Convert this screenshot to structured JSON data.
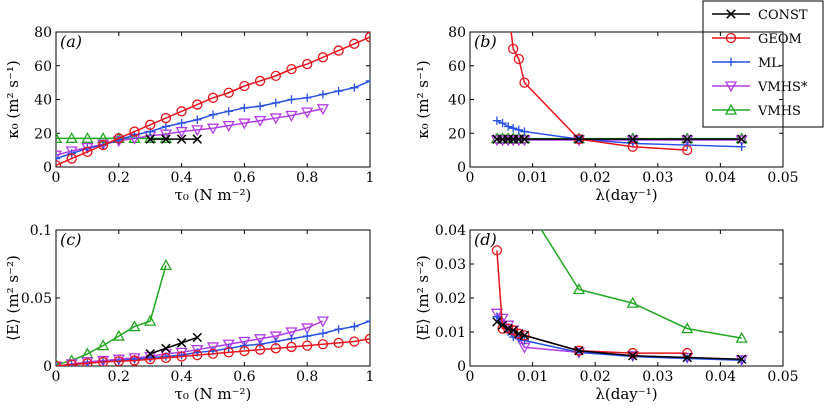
{
  "series_styles": [
    {
      "key": "const",
      "color": "#000000",
      "marker": "x"
    },
    {
      "key": "geom",
      "color": "#e8141c",
      "marker": "circle"
    },
    {
      "key": "ml",
      "color": "#2850e6",
      "marker": "plus"
    },
    {
      "key": "vmhs_star",
      "color": "#b43ce6",
      "marker": "tri-down"
    },
    {
      "key": "vmhs",
      "color": "#1fa81f",
      "marker": "tri-up"
    }
  ],
  "legend": {
    "const": "CONST",
    "geom": "GEOM",
    "ml": "ML",
    "vmhs_star": "VMHS*",
    "vmhs": "VMHS"
  },
  "chart_data": [
    {
      "id": "a",
      "type": "line",
      "panel_label": "(a)",
      "xlabel": "τ₀ (N m⁻²)",
      "ylabel": "κ₀ (m² s⁻¹)",
      "xlim": [
        0,
        1
      ],
      "ylim": [
        0,
        80
      ],
      "xticks": [
        0,
        0.2,
        0.4,
        0.6,
        0.8,
        1
      ],
      "xtick_labels": [
        "0",
        "0.2",
        "0.4",
        "0.6",
        "0.8",
        "1"
      ],
      "yticks": [
        0,
        20,
        40,
        60,
        80
      ],
      "ytick_labels": [
        "0",
        "20",
        "40",
        "60",
        "80"
      ],
      "series": [
        {
          "key": "const",
          "name": "CONST",
          "x": [
            0.3,
            0.35,
            0.4,
            0.45
          ],
          "y": [
            16.5,
            16.5,
            16.5,
            16.5
          ]
        },
        {
          "key": "geom",
          "name": "GEOM",
          "x": [
            0,
            0.05,
            0.1,
            0.15,
            0.2,
            0.25,
            0.3,
            0.35,
            0.4,
            0.45,
            0.5,
            0.55,
            0.6,
            0.65,
            0.7,
            0.75,
            0.8,
            0.85,
            0.9,
            0.95,
            1.0
          ],
          "y": [
            1,
            5,
            9,
            13,
            17,
            21,
            25,
            29,
            33,
            37,
            41,
            44,
            48,
            51,
            54,
            58,
            61,
            65,
            69,
            73,
            77
          ]
        },
        {
          "key": "ml",
          "name": "ML",
          "x": [
            0,
            0.05,
            0.1,
            0.15,
            0.2,
            0.25,
            0.3,
            0.35,
            0.4,
            0.45,
            0.5,
            0.55,
            0.6,
            0.65,
            0.7,
            0.75,
            0.8,
            0.85,
            0.9,
            0.95,
            1.0
          ],
          "y": [
            5,
            8,
            11,
            13,
            16,
            19,
            21,
            24,
            26,
            28,
            31,
            33,
            35,
            36,
            38,
            40,
            41,
            43,
            45,
            47,
            51
          ]
        },
        {
          "key": "vmhs_star",
          "name": "VMHS*",
          "x": [
            0,
            0.05,
            0.1,
            0.15,
            0.2,
            0.25,
            0.3,
            0.35,
            0.4,
            0.45,
            0.5,
            0.55,
            0.6,
            0.65,
            0.7,
            0.75,
            0.8,
            0.85
          ],
          "y": [
            7,
            9.5,
            11.5,
            13.5,
            15.5,
            17,
            18.5,
            19.5,
            21,
            22,
            23,
            24.5,
            26,
            27.5,
            29,
            30.5,
            32.5,
            34.5
          ]
        },
        {
          "key": "vmhs",
          "name": "VMHS",
          "x": [
            0,
            0.05,
            0.1,
            0.15,
            0.2,
            0.25,
            0.3,
            0.35
          ],
          "y": [
            17,
            17,
            17,
            17,
            17,
            17,
            17,
            17
          ]
        }
      ]
    },
    {
      "id": "b",
      "type": "line",
      "panel_label": "(b)",
      "xlabel": "λ(day⁻¹)",
      "ylabel": "κ₀ (m² s⁻¹)",
      "xlim": [
        0,
        0.05
      ],
      "ylim": [
        0,
        80
      ],
      "xticks": [
        0,
        0.01,
        0.02,
        0.03,
        0.04,
        0.05
      ],
      "xtick_labels": [
        "0",
        "0.01",
        "0.02",
        "0.03",
        "0.04",
        "0.05"
      ],
      "yticks": [
        0,
        20,
        40,
        60,
        80
      ],
      "ytick_labels": [
        "0",
        "20",
        "40",
        "60",
        "80"
      ],
      "series": [
        {
          "key": "const",
          "name": "CONST",
          "x": [
            0.0043,
            0.0052,
            0.0061,
            0.0069,
            0.0078,
            0.0087,
            0.0174,
            0.026,
            0.0347,
            0.0434
          ],
          "y": [
            16.5,
            16.5,
            16.5,
            16.5,
            16.5,
            16.5,
            16.5,
            16.5,
            16.5,
            16.5
          ]
        },
        {
          "key": "geom",
          "name": "GEOM",
          "x": [
            0.0061,
            0.0069,
            0.0078,
            0.0087,
            0.0174,
            0.026,
            0.0347
          ],
          "y": [
            95,
            70,
            64,
            50,
            16.5,
            12,
            10
          ]
        },
        {
          "key": "ml",
          "name": "ML",
          "x": [
            0.0043,
            0.0052,
            0.0061,
            0.0069,
            0.0078,
            0.0087,
            0.0174,
            0.026,
            0.0347,
            0.0434
          ],
          "y": [
            27.5,
            26,
            24,
            23,
            22,
            21,
            16.5,
            14,
            13,
            12
          ]
        },
        {
          "key": "vmhs_star",
          "name": "VMHS*",
          "x": [
            0.0043,
            0.0052,
            0.0061,
            0.0069,
            0.0078,
            0.0087,
            0.0174,
            0.026,
            0.0347,
            0.0434
          ],
          "y": [
            16,
            16,
            16,
            16,
            16,
            16,
            16,
            16,
            16,
            16
          ]
        },
        {
          "key": "vmhs",
          "name": "VMHS",
          "x": [
            0.0043,
            0.0052,
            0.0061,
            0.0069,
            0.0078,
            0.0087,
            0.0174,
            0.026,
            0.0347,
            0.0434
          ],
          "y": [
            16.8,
            16.8,
            16.8,
            16.8,
            16.8,
            16.8,
            16.8,
            16.8,
            16.8,
            16.8
          ]
        }
      ]
    },
    {
      "id": "c",
      "type": "line",
      "panel_label": "(c)",
      "xlabel": "τ₀ (N m⁻²)",
      "ylabel": "⟨E⟩ (m² s⁻²)",
      "xlim": [
        0,
        1
      ],
      "ylim": [
        0,
        0.1
      ],
      "xticks": [
        0,
        0.2,
        0.4,
        0.6,
        0.8,
        1
      ],
      "xtick_labels": [
        "0",
        "0.2",
        "0.4",
        "0.6",
        "0.8",
        "1"
      ],
      "yticks": [
        0,
        0.05,
        0.1
      ],
      "ytick_labels": [
        "0",
        "0.05",
        "0.1"
      ],
      "series": [
        {
          "key": "const",
          "name": "CONST",
          "x": [
            0.3,
            0.35,
            0.4,
            0.45
          ],
          "y": [
            0.009,
            0.013,
            0.017,
            0.021
          ]
        },
        {
          "key": "geom",
          "name": "GEOM",
          "x": [
            0,
            0.05,
            0.1,
            0.15,
            0.2,
            0.25,
            0.3,
            0.35,
            0.4,
            0.45,
            0.5,
            0.55,
            0.6,
            0.65,
            0.7,
            0.75,
            0.8,
            0.85,
            0.9,
            0.95,
            1.0
          ],
          "y": [
            0,
            0.001,
            0.002,
            0.003,
            0.0035,
            0.004,
            0.005,
            0.006,
            0.007,
            0.008,
            0.009,
            0.01,
            0.011,
            0.012,
            0.013,
            0.014,
            0.015,
            0.016,
            0.017,
            0.018,
            0.02
          ]
        },
        {
          "key": "ml",
          "name": "ML",
          "x": [
            0,
            0.05,
            0.1,
            0.15,
            0.2,
            0.25,
            0.3,
            0.35,
            0.4,
            0.45,
            0.5,
            0.55,
            0.6,
            0.65,
            0.7,
            0.75,
            0.8,
            0.85,
            0.9,
            0.95,
            1.0
          ],
          "y": [
            0,
            0.001,
            0.002,
            0.003,
            0.004,
            0.005,
            0.006,
            0.007,
            0.008,
            0.01,
            0.011,
            0.013,
            0.015,
            0.016,
            0.018,
            0.02,
            0.022,
            0.024,
            0.027,
            0.029,
            0.033
          ]
        },
        {
          "key": "vmhs_star",
          "name": "VMHS*",
          "x": [
            0,
            0.05,
            0.1,
            0.15,
            0.2,
            0.25,
            0.3,
            0.35,
            0.4,
            0.45,
            0.5,
            0.55,
            0.6,
            0.65,
            0.7,
            0.75,
            0.8,
            0.85
          ],
          "y": [
            0,
            0.0015,
            0.003,
            0.004,
            0.005,
            0.006,
            0.007,
            0.009,
            0.01,
            0.012,
            0.014,
            0.016,
            0.018,
            0.02,
            0.022,
            0.025,
            0.028,
            0.033
          ]
        },
        {
          "key": "vmhs",
          "name": "VMHS",
          "x": [
            0,
            0.05,
            0.1,
            0.15,
            0.2,
            0.25,
            0.3,
            0.35
          ],
          "y": [
            0.001,
            0.004,
            0.009,
            0.015,
            0.022,
            0.029,
            0.033,
            0.074
          ]
        }
      ]
    },
    {
      "id": "d",
      "type": "line",
      "panel_label": "(d)",
      "xlabel": "λ(day⁻¹)",
      "ylabel": "⟨E⟩ (m² s⁻²)",
      "xlim": [
        0,
        0.05
      ],
      "ylim": [
        0,
        0.04
      ],
      "xticks": [
        0,
        0.01,
        0.02,
        0.03,
        0.04,
        0.05
      ],
      "xtick_labels": [
        "0",
        "0.01",
        "0.02",
        "0.03",
        "0.04",
        "0.05"
      ],
      "yticks": [
        0,
        0.01,
        0.02,
        0.03,
        0.04
      ],
      "ytick_labels": [
        "0",
        "0.01",
        "0.02",
        "0.03",
        "0.04"
      ],
      "series": [
        {
          "key": "const",
          "name": "CONST",
          "x": [
            0.0043,
            0.0052,
            0.0061,
            0.0069,
            0.0078,
            0.0087,
            0.0174,
            0.026,
            0.0347,
            0.0434
          ],
          "y": [
            0.013,
            0.012,
            0.011,
            0.0105,
            0.0095,
            0.009,
            0.0045,
            0.003,
            0.0025,
            0.002
          ]
        },
        {
          "key": "geom",
          "name": "GEOM",
          "x": [
            0.0043,
            0.0052,
            0.0061,
            0.0069,
            0.0078,
            0.0087,
            0.0174,
            0.026,
            0.0347
          ],
          "y": [
            0.034,
            0.011,
            0.011,
            0.0105,
            0.0095,
            0.009,
            0.0045,
            0.0038,
            0.0038
          ]
        },
        {
          "key": "ml",
          "name": "ML",
          "x": [
            0.0043,
            0.0052,
            0.0061,
            0.0069,
            0.0078,
            0.0087,
            0.0174,
            0.026,
            0.0347,
            0.0434
          ],
          "y": [
            0.0145,
            0.012,
            0.01,
            0.0085,
            0.008,
            0.0075,
            0.004,
            0.0028,
            0.0022,
            0.0017
          ]
        },
        {
          "key": "vmhs_star",
          "name": "VMHS*",
          "x": [
            0.0043,
            0.0052,
            0.0061,
            0.0069,
            0.0078,
            0.0087,
            0.0174,
            0.026,
            0.0347,
            0.0434
          ],
          "y": [
            0.0155,
            0.014,
            0.012,
            0.0105,
            0.0085,
            0.0055,
            0.004,
            0.003,
            0.0025,
            0.0018
          ]
        },
        {
          "key": "vmhs",
          "name": "VMHS",
          "x": [
            0.0087,
            0.0174,
            0.026,
            0.0347,
            0.0434
          ],
          "y": [
            0.048,
            0.0225,
            0.0185,
            0.011,
            0.0082
          ]
        }
      ]
    }
  ]
}
